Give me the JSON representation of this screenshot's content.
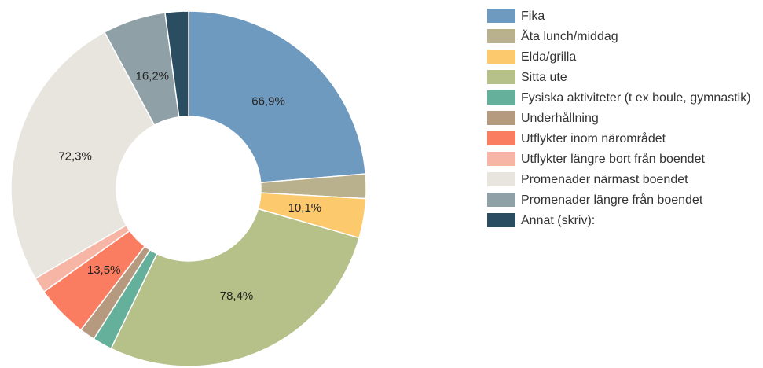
{
  "chart_data": {
    "type": "donut",
    "categories": [
      "Fika",
      "Äta lunch/middag",
      "Elda/grilla",
      "Sitta ute",
      "Fysiska aktiviteter (t ex boule, gymnastik)",
      "Underhållning",
      "Utflykter inom närområdet",
      "Utflykter längre bort från boendet",
      "Promenader närmast boendet",
      "Promenader längre från boendet",
      "Annat (skriv):"
    ],
    "values": [
      66.9,
      6.3,
      10.1,
      78.4,
      5,
      4,
      13.5,
      4,
      72.3,
      16.2,
      6
    ],
    "value_labels": [
      "66,9%",
      null,
      "10,1%",
      "78,4%",
      null,
      null,
      "13,5%",
      null,
      "72,3%",
      "16,2%",
      null
    ],
    "colors": [
      "#6f9ac0",
      "#b9b08d",
      "#fcc96d",
      "#b6c18a",
      "#64b09b",
      "#b59a80",
      "#fb7d61",
      "#f7b6a5",
      "#e8e5de",
      "#8fa0a7",
      "#2b4d62"
    ],
    "legend": "right"
  }
}
